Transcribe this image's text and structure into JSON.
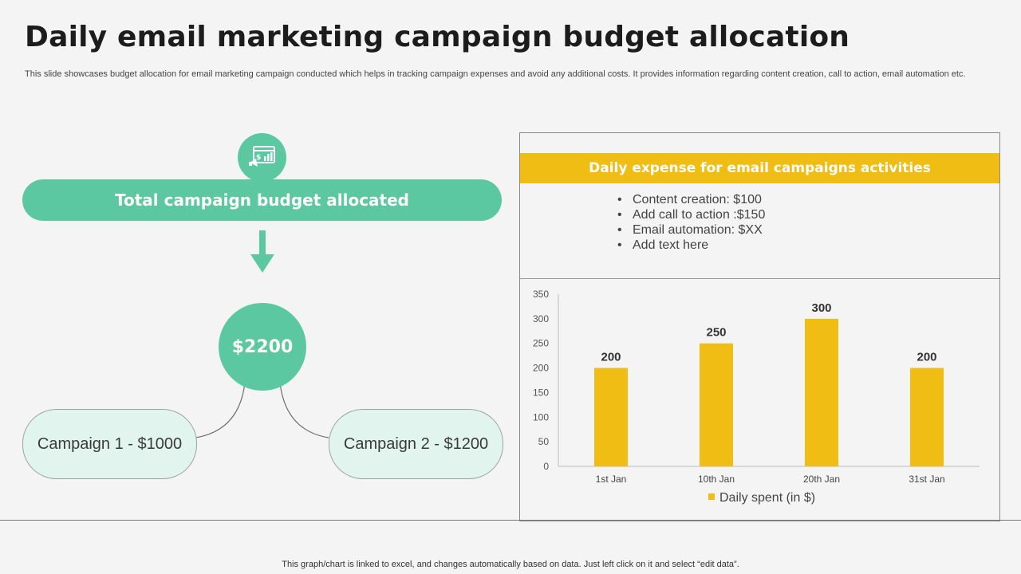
{
  "title": "Daily email marketing campaign budget allocation",
  "subtitle": "This slide showcases budget allocation for email marketing campaign conducted which helps in tracking campaign expenses and avoid any additional costs. It provides information regarding content creation, call to action, email automation etc.",
  "budget": {
    "icon": "budget-chart-icon",
    "label": "Total campaign budget allocated",
    "total": "$2200",
    "campaigns": [
      "Campaign 1 - $1000",
      "Campaign 2 - $1200"
    ]
  },
  "panel": {
    "header": "Daily expense for email campaigns activities",
    "items": [
      "Content creation: $100",
      "Add call to action :$150",
      "Email automation: $XX",
      "Add text here"
    ]
  },
  "chart_data": {
    "type": "bar",
    "categories": [
      "1st Jan",
      "10th Jan",
      "20th Jan",
      "31st Jan"
    ],
    "series": [
      {
        "name": "Daily spent (in $)",
        "values": [
          200,
          250,
          300,
          200
        ]
      }
    ],
    "ylim": [
      0,
      350
    ],
    "yticks": [
      0,
      50,
      100,
      150,
      200,
      250,
      300,
      350
    ],
    "legend_position": "bottom",
    "grid": false
  },
  "colors": {
    "green": "#5bc8a1",
    "yellow": "#f0bd15",
    "light_green": "#e1f4ee"
  },
  "footer_note": "This graph/chart is linked to excel,  and changes automatically based on data. Just left click on it and select “edit data”."
}
